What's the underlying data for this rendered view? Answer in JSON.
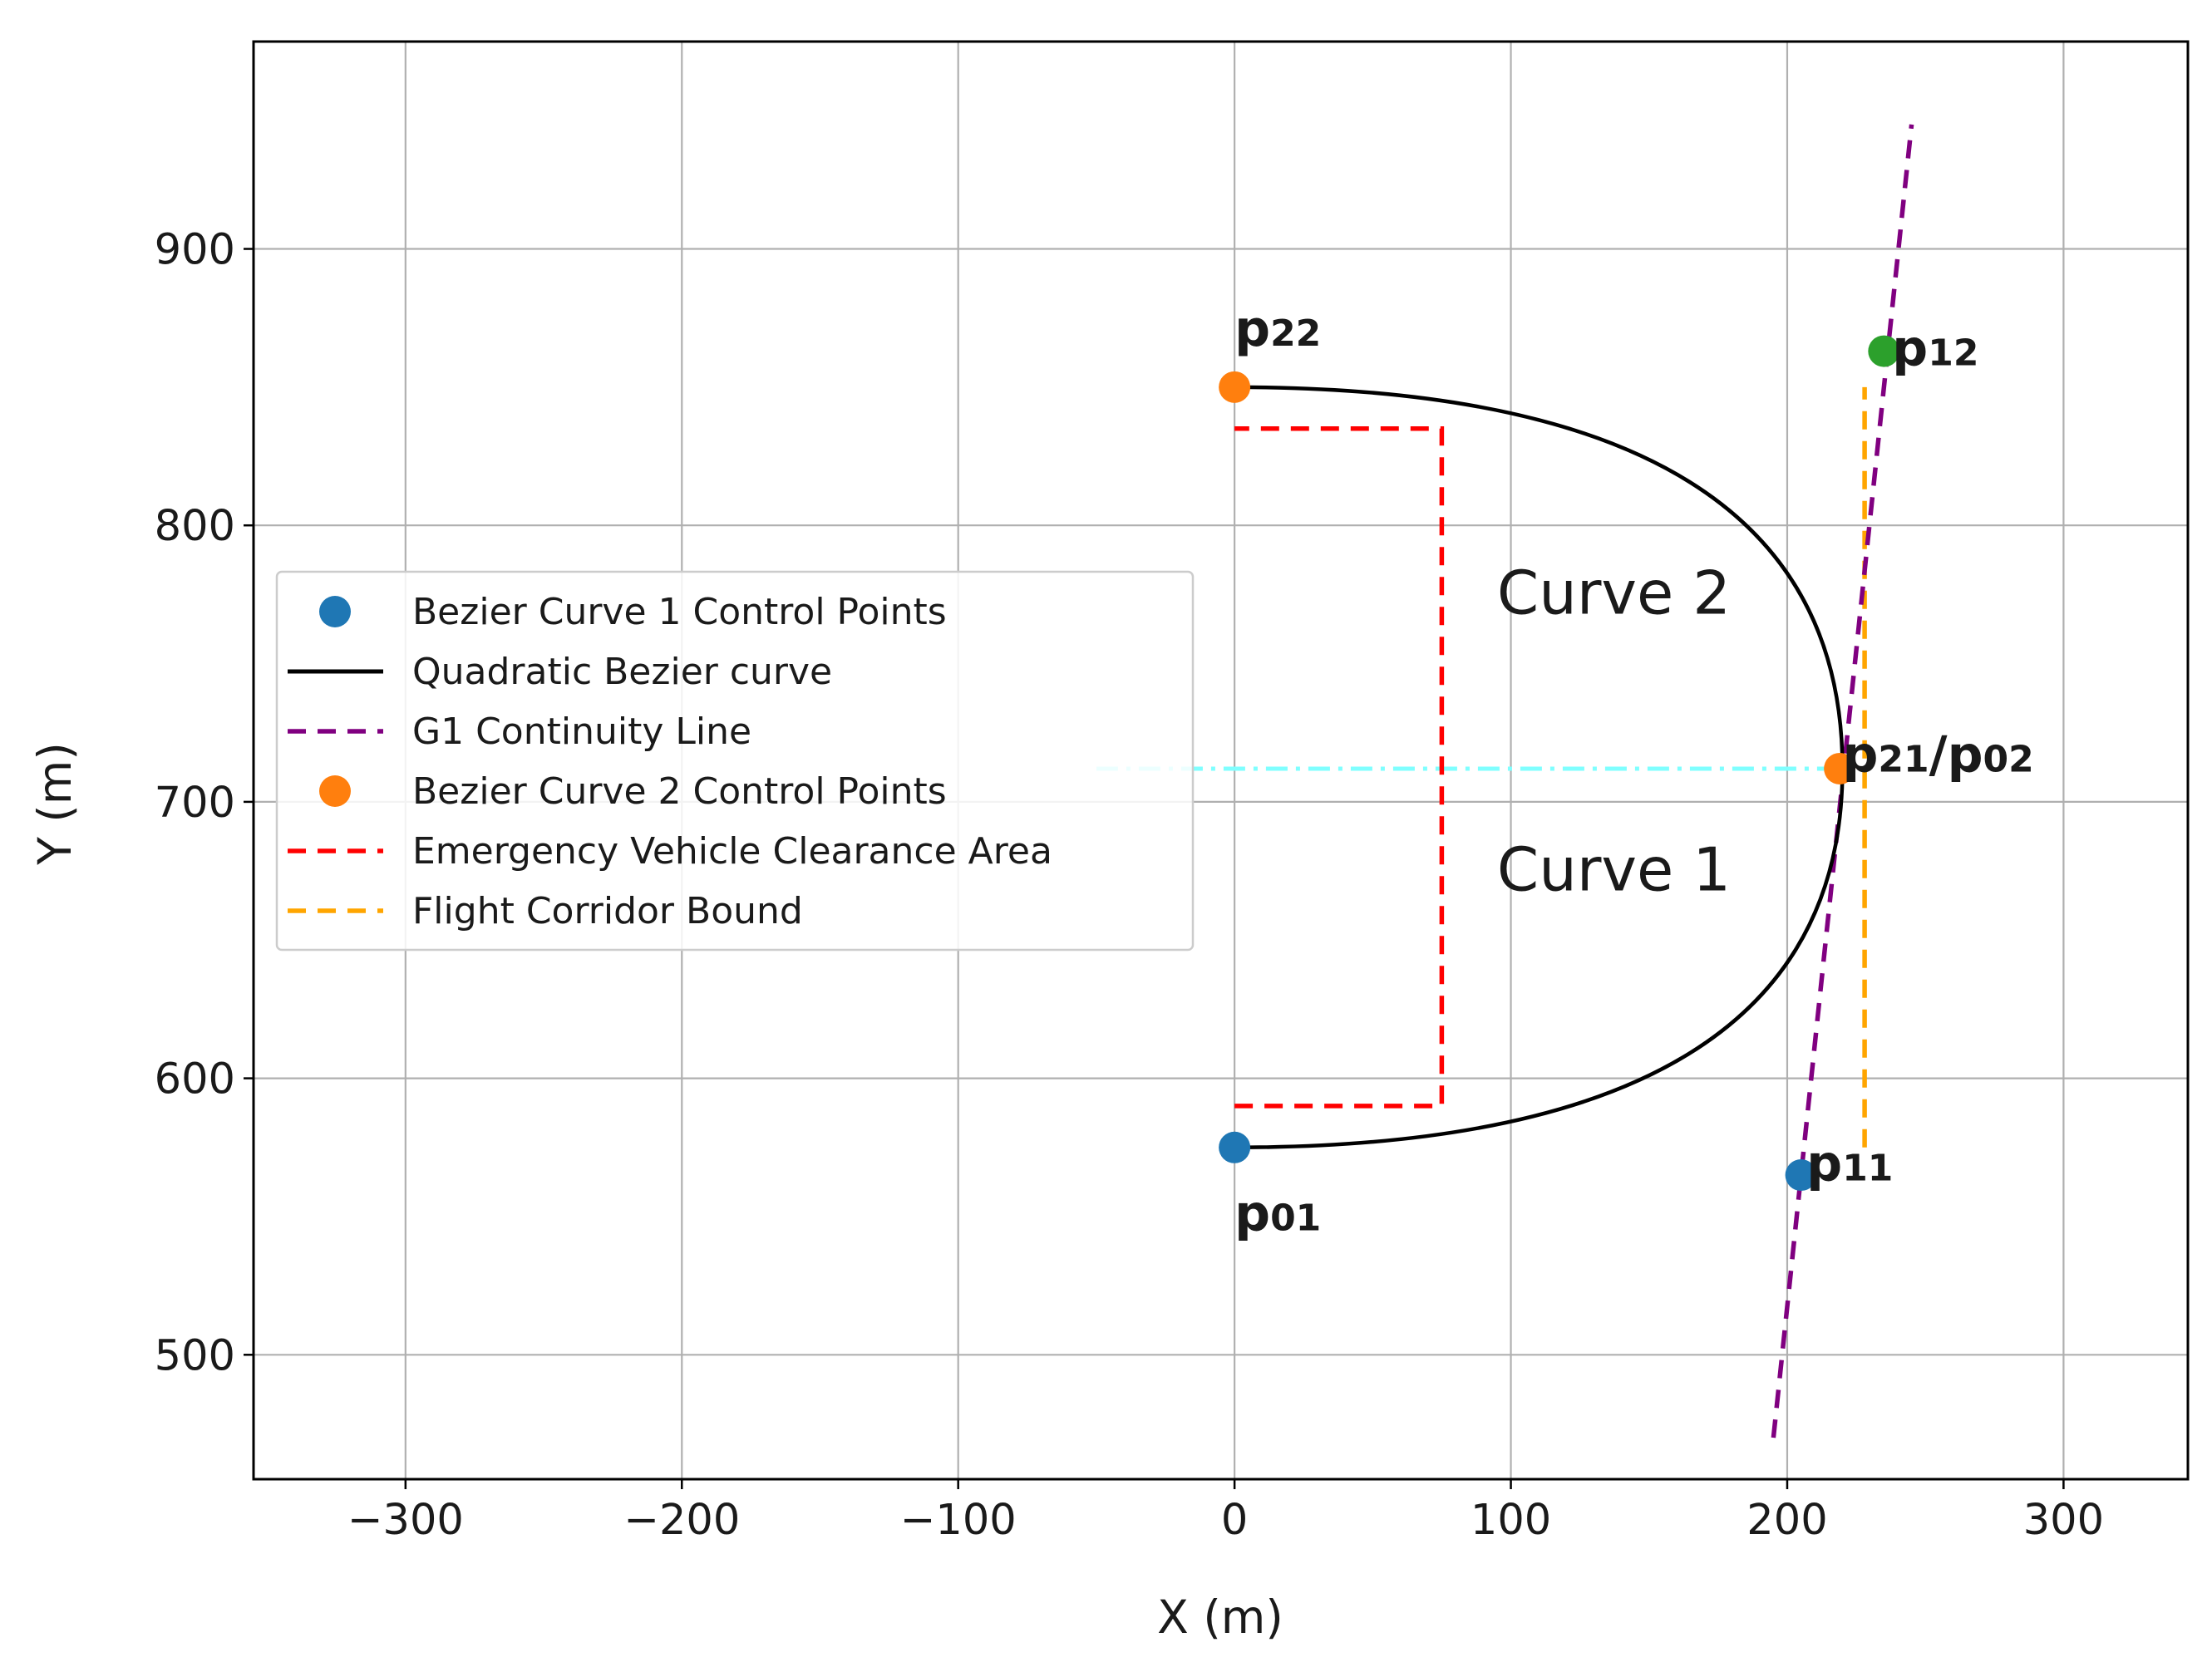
{
  "chart_data": {
    "type": "line",
    "title": "",
    "xlabel": "X (m)",
    "ylabel": "Y (m)",
    "xlim": [
      -355,
      345
    ],
    "ylim": [
      455,
      975
    ],
    "grid": true,
    "xticks": [
      -300,
      -200,
      -100,
      0,
      100,
      200,
      300
    ],
    "xtick_labels": [
      "−300",
      "−200",
      "−100",
      "0",
      "100",
      "200",
      "300"
    ],
    "yticks": [
      500,
      600,
      700,
      800,
      900
    ],
    "ytick_labels": [
      "500",
      "600",
      "700",
      "800",
      "900"
    ],
    "series": [
      {
        "name": "Bezier Curve 1 Control Points",
        "kind": "scatter",
        "color": "#1f77b4",
        "points": [
          {
            "x": 0,
            "y": 575
          },
          {
            "x": 205,
            "y": 565
          }
        ]
      },
      {
        "name": "Quadratic Bezier curve",
        "kind": "line",
        "color": "#000000",
        "style": "solid",
        "segments": [
          {
            "p0": [
              0,
              575
            ],
            "p1": [
              220,
              575
            ],
            "p2": [
              220,
              712
            ]
          },
          {
            "p0": [
              220,
              712
            ],
            "p1": [
              220,
              850
            ],
            "p2": [
              0,
              850
            ]
          }
        ]
      },
      {
        "name": "G1 Continuity Line",
        "kind": "line",
        "color": "#800080",
        "style": "dashed",
        "points": [
          {
            "x": 195,
            "y": 470
          },
          {
            "x": 245,
            "y": 945
          }
        ]
      },
      {
        "name": "Bezier Curve 2 Control Points",
        "kind": "scatter",
        "color": "#ff7f0e",
        "points": [
          {
            "x": 0,
            "y": 850
          },
          {
            "x": 219,
            "y": 712
          }
        ]
      },
      {
        "name": "Emergency Vehicle Clearance Area",
        "kind": "line",
        "color": "#ff0000",
        "style": "dashed",
        "points": [
          {
            "x": 0,
            "y": 590
          },
          {
            "x": 75,
            "y": 590
          },
          {
            "x": 75,
            "y": 835
          },
          {
            "x": 0,
            "y": 835
          }
        ]
      },
      {
        "name": "Flight Corridor Bound",
        "kind": "line",
        "color": "#ffa500",
        "style": "dashed",
        "points": [
          {
            "x": 228,
            "y": 575
          },
          {
            "x": 228,
            "y": 850
          }
        ]
      }
    ],
    "extra_marks": [
      {
        "name": "midline",
        "color": "#7fffff",
        "style": "dashdot",
        "points": [
          {
            "x": -50,
            "y": 712
          },
          {
            "x": 222,
            "y": 712
          }
        ]
      },
      {
        "name": "p12 point",
        "color": "#2ca02c",
        "points": [
          {
            "x": 235,
            "y": 863
          }
        ]
      }
    ],
    "annotations": [
      {
        "text": "Curve 2",
        "x": 95,
        "y": 768
      },
      {
        "text": "Curve 1",
        "x": 95,
        "y": 668
      }
    ],
    "point_labels": [
      {
        "base": "p",
        "sub": "22",
        "x": 0,
        "y": 865
      },
      {
        "base": "p",
        "sub": "12",
        "x": 238,
        "y": 858
      },
      {
        "base": "p",
        "sub": "21",
        "tail": "/",
        "base2": "p",
        "sub2": "02",
        "x": 220,
        "y": 711
      },
      {
        "base": "p",
        "sub": "11",
        "x": 207,
        "y": 563
      },
      {
        "base": "p",
        "sub": "01",
        "x": 0,
        "y": 545
      }
    ],
    "legend": {
      "placement": "center-left",
      "entries": [
        "Bezier Curve 1 Control Points",
        "Quadratic Bezier curve",
        "G1 Continuity Line",
        "Bezier Curve 2 Control Points",
        "Emergency Vehicle Clearance Area",
        "Flight Corridor Bound"
      ]
    }
  }
}
